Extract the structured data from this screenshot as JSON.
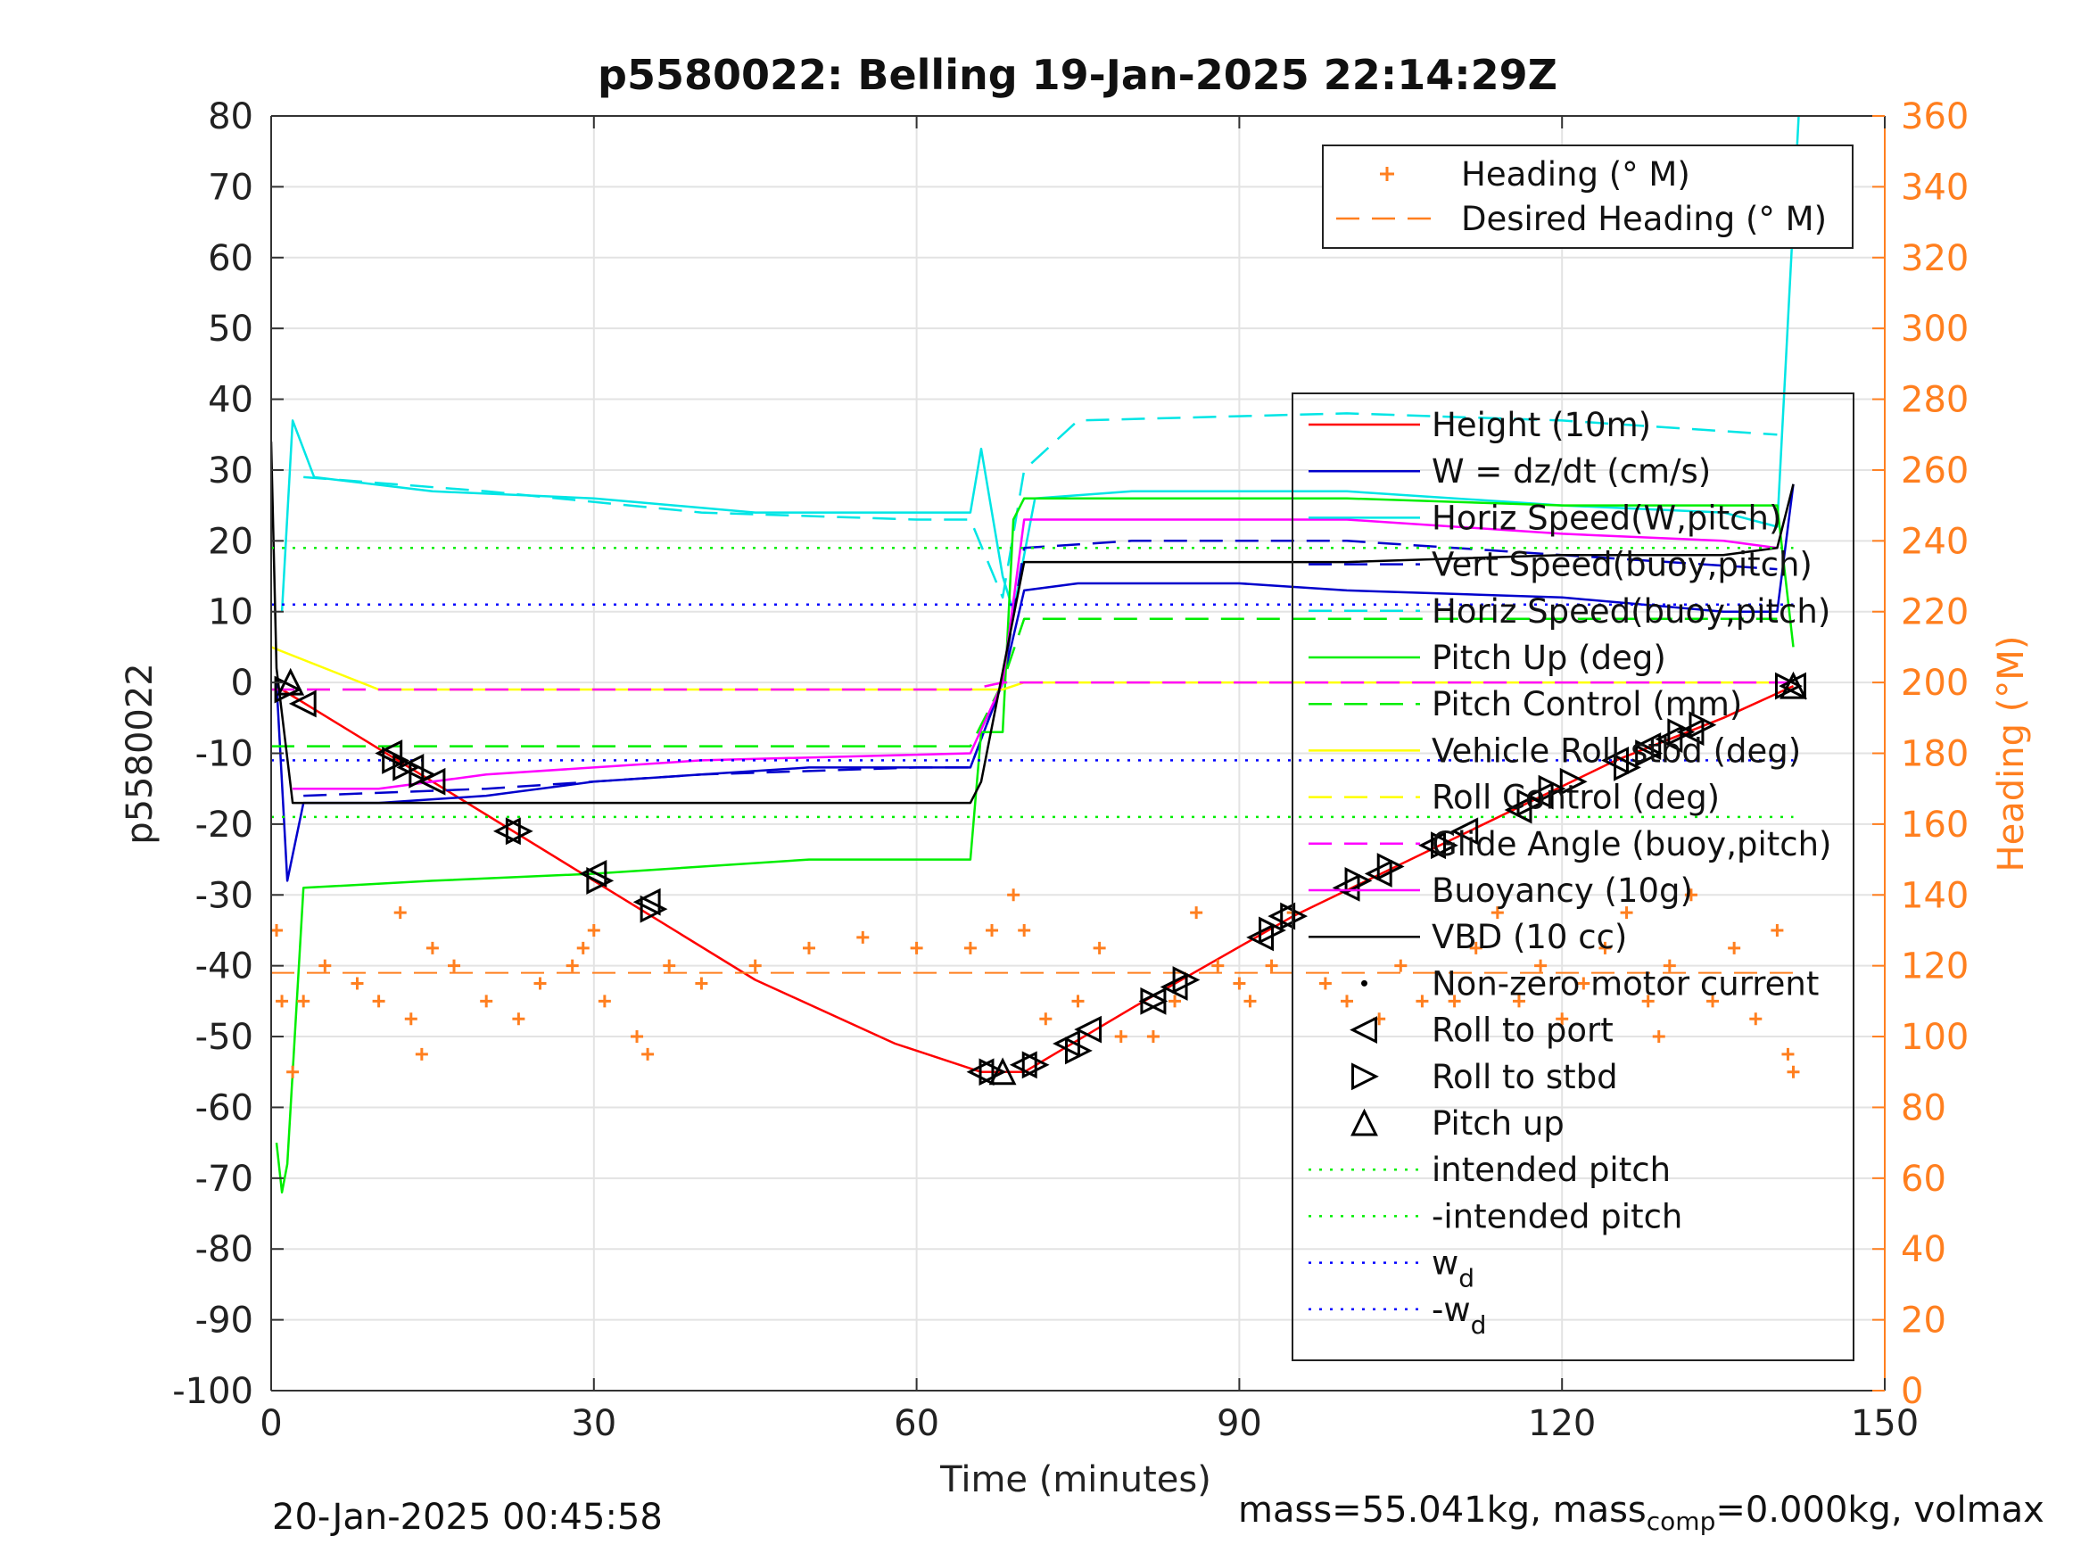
{
  "chart_data": {
    "type": "line",
    "title": "p5580022: Belling 19-Jan-2025 22:14:29Z",
    "xlabel": "Time (minutes)",
    "ylabel": "p5580022",
    "y2label": "Heading (°M)",
    "xlim": [
      0,
      150
    ],
    "ylim": [
      -100,
      80
    ],
    "y2lim": [
      0,
      360
    ],
    "xticks": [
      "0",
      "30",
      "60",
      "90",
      "120",
      "150"
    ],
    "yticks": [
      "-100",
      "-90",
      "-80",
      "-70",
      "-60",
      "-50",
      "-40",
      "-30",
      "-20",
      "-10",
      "0",
      "10",
      "20",
      "30",
      "40",
      "50",
      "60",
      "70",
      "80"
    ],
    "y2ticks": [
      "0",
      "20",
      "40",
      "60",
      "80",
      "100",
      "120",
      "140",
      "160",
      "180",
      "200",
      "220",
      "240",
      "260",
      "280",
      "300",
      "320",
      "340",
      "360"
    ],
    "grid": true,
    "colors": {
      "axis_right": "#ff7f1f",
      "heading": "#ff7f1f",
      "height": "#ff0000",
      "w": "#0000cc",
      "cyan": "#00e5e5",
      "green": "#00ee00",
      "yellow": "#ffff00",
      "magenta": "#ff00ff",
      "black": "#000000",
      "blue_dot": "#0000ff"
    },
    "legend_heading": [
      {
        "label": "Heading (° M)",
        "style": "plus",
        "color": "#ff7f1f"
      },
      {
        "label": "Desired Heading (° M)",
        "style": "dash",
        "color": "#ff7f1f"
      }
    ],
    "legend_main": [
      {
        "label": "Height (10m)",
        "style": "solid",
        "color": "#ff0000"
      },
      {
        "label": "W = dz/dt (cm/s)",
        "style": "solid",
        "color": "#0000cc"
      },
      {
        "label": "Horiz Speed(W,pitch)",
        "style": "solid",
        "color": "#00e5e5"
      },
      {
        "label": "Vert Speed(buoy,pitch)",
        "style": "dash",
        "color": "#0000cc"
      },
      {
        "label": "Horiz Speed(buoy,pitch)",
        "style": "dash",
        "color": "#00e5e5"
      },
      {
        "label": "Pitch Up (deg)",
        "style": "solid",
        "color": "#00ee00"
      },
      {
        "label": "Pitch Control (mm)",
        "style": "dash",
        "color": "#00ee00"
      },
      {
        "label": "Vehicle Roll stbd (deg)",
        "style": "solid",
        "color": "#ffff00"
      },
      {
        "label": "Roll Control (deg)",
        "style": "dash",
        "color": "#ffff00"
      },
      {
        "label": "Glide Angle (buoy,pitch)",
        "style": "dash",
        "color": "#ff00ff"
      },
      {
        "label": "Buoyancy (10g)",
        "style": "solid",
        "color": "#ff00ff"
      },
      {
        "label": "VBD (10 cc)",
        "style": "solid",
        "color": "#000000"
      },
      {
        "label": "Non-zero motor current",
        "style": "dot",
        "color": "#000000"
      },
      {
        "label": "Roll to port",
        "style": "tri-left",
        "color": "#000000"
      },
      {
        "label": "Roll to stbd",
        "style": "tri-right",
        "color": "#000000"
      },
      {
        "label": "Pitch up",
        "style": "tri-up",
        "color": "#000000"
      },
      {
        "label": "intended pitch",
        "style": "dotted",
        "color": "#00ee00"
      },
      {
        "label": "-intended pitch",
        "style": "dotted",
        "color": "#00ee00"
      },
      {
        "label": "w_d",
        "style": "dotted",
        "color": "#0000ff"
      },
      {
        "label": "-w_d",
        "style": "dotted",
        "color": "#0000ff"
      }
    ],
    "series": [
      {
        "name": "Height (10m)",
        "color": "#ff0000",
        "x": [
          1,
          15,
          30,
          45,
          58,
          66,
          70,
          80,
          95,
          110,
          125,
          135,
          141.5
        ],
        "y": [
          -1,
          -14,
          -28,
          -42,
          -51,
          -55,
          -55,
          -46,
          -33,
          -22,
          -11,
          -5,
          -0.5
        ]
      },
      {
        "name": "W = dz/dt (cm/s)",
        "color": "#0000cc",
        "x": [
          0.5,
          1.5,
          3,
          10,
          20,
          30,
          40,
          50,
          60,
          65,
          68,
          70,
          75,
          90,
          100,
          120,
          135,
          140,
          141.5
        ],
        "y": [
          0,
          -28,
          -17,
          -17,
          -16,
          -14,
          -13,
          -12,
          -12,
          -12,
          0,
          13,
          14,
          14,
          13,
          12,
          10,
          10,
          28
        ]
      },
      {
        "name": "Horiz Speed(W,pitch)",
        "color": "#00e5e5",
        "x": [
          1,
          2,
          4,
          15,
          30,
          45,
          60,
          65,
          66,
          68,
          69,
          71,
          80,
          100,
          120,
          135,
          140,
          142
        ],
        "y": [
          10,
          37,
          29,
          27,
          26,
          24,
          24,
          24,
          33,
          15,
          10,
          26,
          27,
          27,
          25,
          24,
          22,
          80
        ]
      },
      {
        "name": "Vert Speed(buoy,pitch)",
        "color": "#0000cc",
        "x": [
          3,
          20,
          40,
          60,
          65,
          68,
          70,
          80,
          100,
          120,
          140
        ],
        "y": [
          -16,
          -15,
          -13,
          -12,
          -12,
          0,
          19,
          20,
          20,
          18,
          16
        ]
      },
      {
        "name": "Horiz Speed(buoy,pitch)",
        "color": "#00e5e5",
        "x": [
          3,
          20,
          40,
          60,
          65,
          68,
          70,
          75,
          100,
          120,
          140
        ],
        "y": [
          29,
          27,
          24,
          23,
          23,
          12,
          30,
          37,
          38,
          37,
          35
        ]
      },
      {
        "name": "Pitch Up (deg)",
        "color": "#00ee00",
        "x": [
          0.5,
          1,
          1.5,
          3,
          15,
          30,
          50,
          65,
          66,
          68,
          69,
          70,
          80,
          100,
          120,
          140,
          141.5
        ],
        "y": [
          -65,
          -72,
          -68,
          -29,
          -28,
          -27,
          -25,
          -25,
          -7,
          -7,
          23,
          26,
          26,
          26,
          25,
          25,
          5
        ]
      },
      {
        "name": "Pitch Control (mm)",
        "color": "#00ee00",
        "x": [
          0,
          30,
          65,
          68,
          70,
          100,
          140
        ],
        "y": [
          -9,
          -9,
          -9,
          0,
          9,
          9,
          9
        ]
      },
      {
        "name": "Vehicle Roll stbd (deg)",
        "color": "#ffff00",
        "x": [
          0,
          10,
          20,
          30,
          40,
          50,
          60,
          65,
          68,
          70,
          80,
          90,
          100,
          110,
          120,
          130,
          140
        ],
        "y": [
          5,
          -1,
          -1,
          -1,
          -1,
          -1,
          -1,
          -1,
          -1,
          0,
          0,
          0,
          0,
          0,
          0,
          0,
          0
        ]
      },
      {
        "name": "Roll Control (deg)",
        "color": "#ffff00",
        "x": [
          0,
          65,
          68,
          70,
          140
        ],
        "y": [
          -1,
          -1,
          0,
          0,
          0
        ]
      },
      {
        "name": "Glide Angle (buoy,pitch)",
        "color": "#ff00ff",
        "x": [
          0,
          65,
          68,
          70,
          141
        ],
        "y": [
          -1,
          -1,
          0,
          0,
          0
        ]
      },
      {
        "name": "Buoyancy (10g)",
        "color": "#ff00ff",
        "x": [
          2,
          10,
          20,
          40,
          65,
          68,
          70,
          80,
          100,
          120,
          135,
          140
        ],
        "y": [
          -15,
          -15,
          -13,
          -11,
          -10,
          0,
          23,
          23,
          23,
          21,
          20,
          19
        ]
      },
      {
        "name": "VBD (10 cc)",
        "color": "#000000",
        "x": [
          0,
          0.5,
          2,
          65,
          66,
          70,
          80,
          100,
          120,
          135,
          140,
          141.5
        ],
        "y": [
          34,
          2,
          -17,
          -17,
          -14,
          17,
          17,
          17,
          18,
          18,
          19,
          28
        ]
      },
      {
        "name": "intended pitch",
        "color": "#00ee00",
        "x": [
          0,
          141.5
        ],
        "y": [
          19,
          19
        ]
      },
      {
        "name": "-intended pitch",
        "color": "#00ee00",
        "x": [
          0,
          141.5
        ],
        "y": [
          -19,
          -19
        ]
      },
      {
        "name": "w_d",
        "color": "#0000ff",
        "x": [
          0,
          141.5
        ],
        "y": [
          11,
          11
        ]
      },
      {
        "name": "-w_d",
        "color": "#0000ff",
        "x": [
          0,
          141.5
        ],
        "y": [
          -11,
          -11
        ]
      }
    ],
    "heading": {
      "name": "Heading (° M)",
      "axis": "right",
      "color": "#ff7f1f",
      "x": [
        0.5,
        1,
        2,
        3,
        5,
        8,
        10,
        12,
        13,
        14,
        15,
        17,
        20,
        23,
        25,
        28,
        29,
        30,
        31,
        34,
        35,
        37,
        40,
        45,
        50,
        55,
        60,
        65,
        67,
        69,
        70,
        72,
        75,
        77,
        79,
        82,
        84,
        86,
        88,
        90,
        91,
        93,
        95,
        98,
        100,
        103,
        105,
        107,
        110,
        112,
        114,
        116,
        118,
        120,
        122,
        124,
        126,
        128,
        129,
        130,
        132,
        134,
        136,
        138,
        140,
        141,
        141.5
      ],
      "y": [
        130,
        110,
        90,
        110,
        120,
        115,
        110,
        135,
        105,
        95,
        125,
        120,
        110,
        105,
        115,
        120,
        125,
        130,
        110,
        100,
        95,
        120,
        115,
        120,
        125,
        128,
        125,
        125,
        130,
        140,
        130,
        105,
        110,
        125,
        100,
        100,
        110,
        135,
        120,
        115,
        110,
        120,
        135,
        115,
        110,
        105,
        120,
        110,
        110,
        125,
        135,
        110,
        120,
        105,
        115,
        125,
        135,
        110,
        100,
        120,
        140,
        110,
        125,
        105,
        130,
        95,
        90
      ]
    },
    "desired_heading": {
      "name": "Desired Heading (° M)",
      "axis": "right",
      "x": [
        0,
        141.5
      ],
      "y": [
        118,
        118
      ]
    },
    "markers": {
      "roll_to_port": {
        "x": [
          3,
          11,
          13,
          15,
          22,
          30,
          35,
          66,
          70,
          74,
          76,
          82,
          84,
          92,
          94,
          100,
          103,
          108,
          111,
          116,
          118,
          125,
          128,
          130,
          132,
          141.5
        ],
        "y": [
          -3,
          -10,
          -12,
          -14,
          -21,
          -27,
          -31,
          -55,
          -54,
          -51,
          -49,
          -45,
          -43,
          -36,
          -33,
          -29,
          -27,
          -23,
          -21,
          -18,
          -16,
          -11,
          -9,
          -8,
          -7,
          -0.5
        ]
      },
      "roll_to_stbd": {
        "x": [
          1.5,
          11.5,
          12.5,
          14,
          23,
          30.5,
          35.5,
          67,
          71,
          75,
          82,
          85,
          93,
          95,
          101,
          104,
          109,
          117,
          119,
          121,
          126,
          128,
          131,
          133,
          141
        ],
        "y": [
          -1,
          -11,
          -12,
          -13,
          -21,
          -28,
          -32,
          -55,
          -54,
          -52,
          -45,
          -42,
          -35,
          -33,
          -28,
          -26,
          -23,
          -17,
          -15,
          -14,
          -12,
          -10,
          -7,
          -6,
          -0.5
        ]
      },
      "pitch_up": {
        "x": [
          1.8,
          68,
          141.5
        ],
        "y": [
          0,
          -55,
          -0.5
        ]
      }
    }
  },
  "footer": {
    "timestamp": "20-Jan-2025 00:45:58",
    "mass_text": "mass=55.041kg, mass",
    "mass_sub": "comp",
    "mass_rest": "=0.000kg, volmax"
  }
}
